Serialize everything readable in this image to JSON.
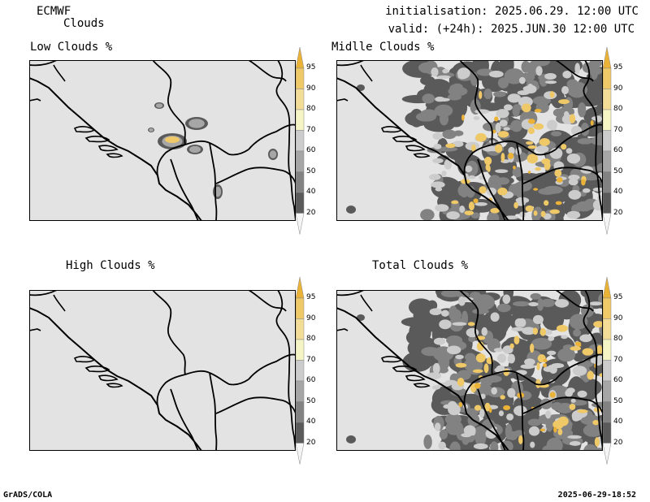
{
  "header": {
    "model": "ECMWF",
    "field": "Clouds",
    "init": "initialisation: 2025.06.29. 12:00 UTC",
    "valid": "valid: (+24h): 2025.JUN.30 12:00 UTC"
  },
  "panels": [
    {
      "id": "low",
      "title": "Low Clouds %",
      "coverage": "sparse"
    },
    {
      "id": "middle",
      "title": "Midlle Clouds %",
      "coverage": "heavy"
    },
    {
      "id": "high",
      "title": "High Clouds %",
      "coverage": "none"
    },
    {
      "id": "total",
      "title": "Total Clouds %",
      "coverage": "heavy"
    }
  ],
  "colorbar": {
    "levels": [
      "20",
      "40",
      "50",
      "60",
      "70",
      "80",
      "90",
      "95"
    ],
    "colors": [
      "#f5f5f5",
      "#5a5a5a",
      "#828282",
      "#a6a6a6",
      "#cccccc",
      "#f4f4c4",
      "#f2dc96",
      "#efc868",
      "#ebb238"
    ]
  },
  "footer": {
    "left": "GrADS/COLA",
    "right": "2025-06-29-18:52"
  }
}
